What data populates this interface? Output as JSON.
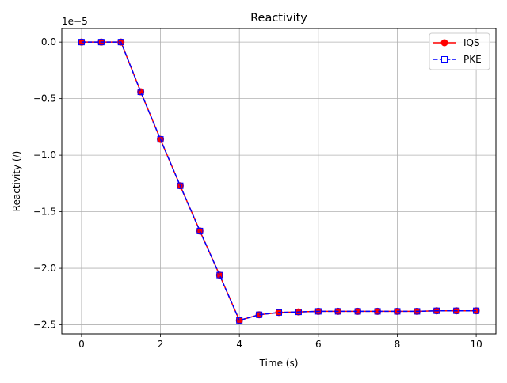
{
  "chart_data": {
    "type": "line",
    "title": "Reactivity",
    "xlabel": "Time (s)",
    "ylabel": "Reactivity (/)",
    "y_offset_label": "1e−5",
    "y_scale_factor": 1e-05,
    "xlim": [
      -0.5,
      10.5
    ],
    "ylim": [
      -2.58,
      0.12
    ],
    "grid": true,
    "legend_position": "top-right",
    "x_ticks": [
      0,
      2,
      4,
      6,
      8,
      10
    ],
    "x_tick_labels": [
      "0",
      "2",
      "4",
      "6",
      "8",
      "10"
    ],
    "y_ticks": [
      0.0,
      -0.5,
      -1.0,
      -1.5,
      -2.0,
      -2.5
    ],
    "y_tick_labels": [
      "0.0",
      "−0.5",
      "−1.0",
      "−1.5",
      "−2.0",
      "−2.5"
    ],
    "x": [
      0,
      0.5,
      1,
      1.5,
      2,
      2.5,
      3,
      3.5,
      4,
      4.5,
      5,
      5.5,
      6,
      6.5,
      7,
      7.5,
      8,
      8.5,
      9,
      9.5,
      10
    ],
    "series": [
      {
        "name": "IQS",
        "color": "#ff0000",
        "line_style": "solid",
        "marker": "circle",
        "values": [
          0.0,
          0.0,
          0.0,
          -0.44,
          -0.86,
          -1.27,
          -1.67,
          -2.06,
          -2.46,
          -2.41,
          -2.39,
          -2.385,
          -2.38,
          -2.38,
          -2.38,
          -2.38,
          -2.38,
          -2.38,
          -2.375,
          -2.375,
          -2.375
        ]
      },
      {
        "name": "PKE",
        "color": "#0000ff",
        "line_style": "dashed",
        "marker": "square",
        "values": [
          0.0,
          0.0,
          0.0,
          -0.44,
          -0.86,
          -1.27,
          -1.67,
          -2.06,
          -2.46,
          -2.41,
          -2.39,
          -2.385,
          -2.38,
          -2.38,
          -2.38,
          -2.38,
          -2.38,
          -2.38,
          -2.375,
          -2.375,
          -2.375
        ]
      }
    ]
  }
}
